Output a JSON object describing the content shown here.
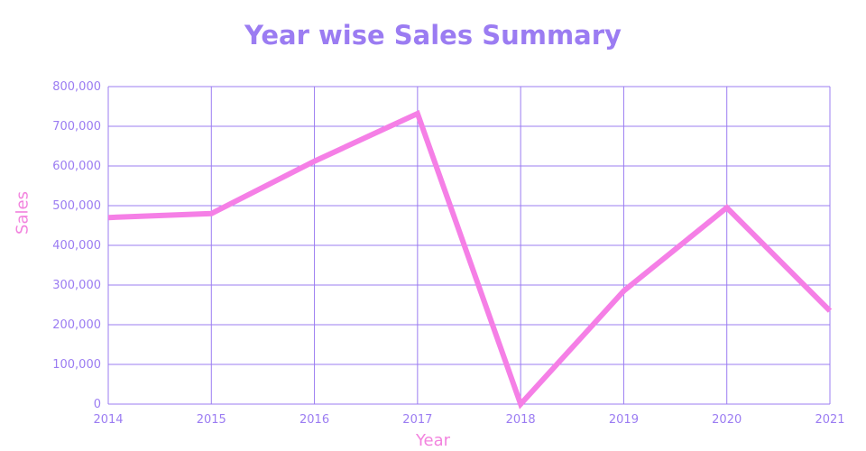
{
  "colors": {
    "title": "#9b7cf2",
    "axis_label": "#f283de",
    "tick_label": "#9b7cf2",
    "grid": "#9b7cf2",
    "line": "#f57fe6"
  },
  "chart_data": {
    "type": "line",
    "title": "Year wise Sales Summary",
    "xlabel": "Year",
    "ylabel": "Sales",
    "x": [
      2014,
      2015,
      2016,
      2017,
      2018,
      2019,
      2020,
      2021
    ],
    "x_tick_labels": [
      "2014",
      "2015",
      "2016",
      "2017",
      "2018",
      "2019",
      "2020",
      "2021"
    ],
    "y_ticks": [
      0,
      100000,
      200000,
      300000,
      400000,
      500000,
      600000,
      700000,
      800000
    ],
    "y_tick_labels": [
      "0",
      "100,000",
      "200,000",
      "300,000",
      "400,000",
      "500,000",
      "600,000",
      "700,000",
      "800,000"
    ],
    "ylim": [
      0,
      800000
    ],
    "xlim": [
      2014,
      2021
    ],
    "grid": true,
    "legend": "none",
    "series": [
      {
        "values": [
          470000,
          480000,
          612000,
          732000,
          0,
          285000,
          495000,
          235000
        ]
      }
    ]
  }
}
